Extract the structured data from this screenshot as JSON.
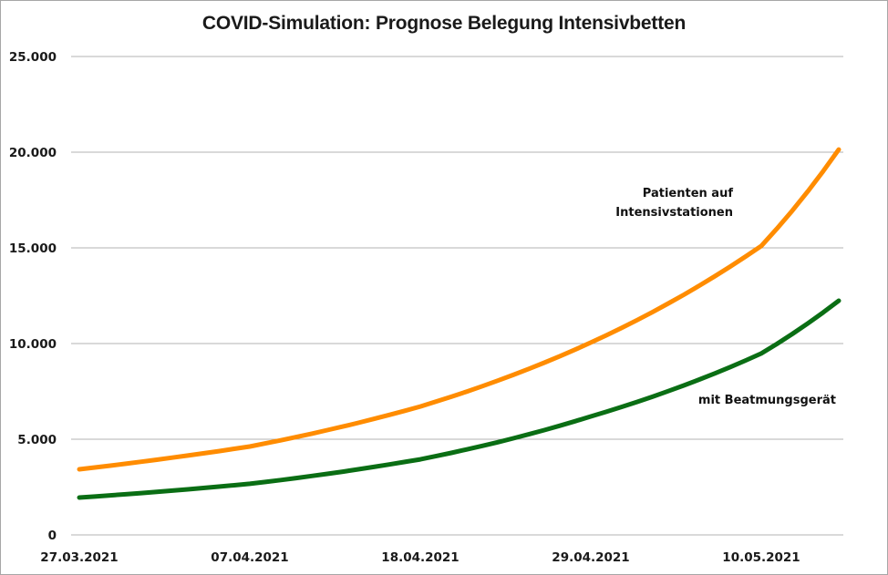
{
  "chart_data": {
    "type": "line",
    "title": "COVID-Simulation: Prognose Belegung Intensivbetten",
    "xlabel": "",
    "ylabel": "",
    "ylim": [
      0,
      25000
    ],
    "yticks": [
      0,
      5000,
      10000,
      15000,
      20000,
      25000
    ],
    "ytick_labels": [
      "0",
      "5.000",
      "10.000",
      "15.000",
      "20.000",
      "25.000"
    ],
    "x_start": "27.03.2021",
    "x_days": 50,
    "xtick_days": [
      0,
      11,
      22,
      33,
      44
    ],
    "xtick_labels": [
      "27.03.2021",
      "07.04.2021",
      "18.04.2021",
      "29.04.2021",
      "10.05.2021"
    ],
    "grid": true,
    "legend": "none",
    "series": [
      {
        "name": "Patienten auf Intensivstationen",
        "label_lines": [
          "Patienten auf",
          "Intensivstationen"
        ],
        "color": "#ff8c00",
        "values": [
          3430,
          3524,
          3621,
          3721,
          3823,
          3928,
          4036,
          4147,
          4261,
          4378,
          4498,
          4620,
          4780,
          4945,
          5115,
          5292,
          5474,
          5663,
          5859,
          6061,
          6270,
          6486,
          6710,
          6961,
          7221,
          7491,
          7771,
          8062,
          8363,
          8676,
          9000,
          9337,
          9686,
          10050,
          10429,
          10822,
          11230,
          11654,
          12093,
          12549,
          13022,
          13513,
          14022,
          14551,
          15100,
          15995,
          16944,
          17949,
          19013,
          20140
        ]
      },
      {
        "name": "mit Beatmungsgerät",
        "label_lines": [
          "mit Beatmungsgerät"
        ],
        "color": "#0a6e14",
        "values": [
          1950,
          2007,
          2065,
          2125,
          2186,
          2250,
          2315,
          2382,
          2451,
          2522,
          2595,
          2670,
          2767,
          2867,
          2972,
          3080,
          3191,
          3307,
          3427,
          3552,
          3681,
          3814,
          3950,
          4115,
          4286,
          4465,
          4651,
          4845,
          5047,
          5258,
          5477,
          5706,
          5944,
          6190,
          6435,
          6689,
          6953,
          7228,
          7513,
          7810,
          8118,
          8439,
          8772,
          9119,
          9480,
          9977,
          10500,
          11050,
          11630,
          12240
        ]
      }
    ]
  }
}
